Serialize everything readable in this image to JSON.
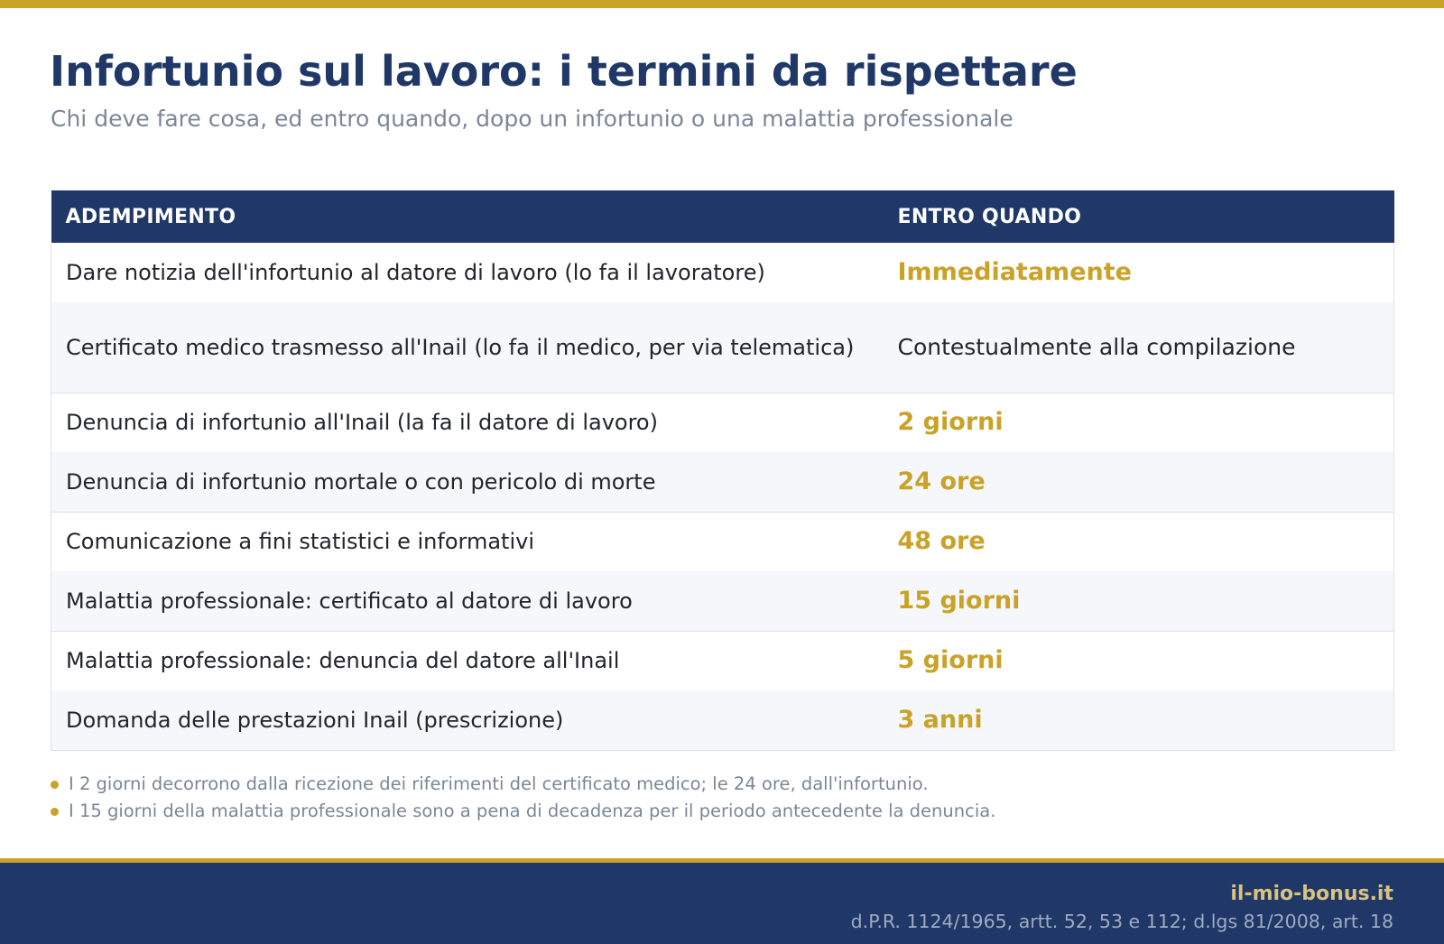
{
  "header": {
    "title": "Infortunio sul lavoro: i termini da rispettare",
    "subtitle": "Chi deve fare cosa, ed entro quando, dopo un infortunio o una malattia professionale"
  },
  "table": {
    "columns": [
      "ADEMPIMENTO",
      "ENTRO QUANDO"
    ],
    "rows": [
      {
        "task": "Dare notizia dell'infortunio al datore di lavoro (lo fa il lavoratore)",
        "deadline": "Immediatamente"
      },
      {
        "task": "Certificato medico trasmesso all'Inail (lo fa il medico, per via telematica)",
        "deadline": "Contestualmente alla compilazione"
      },
      {
        "task": "Denuncia di infortunio all'Inail (la fa il datore di lavoro)",
        "deadline": "2 giorni"
      },
      {
        "task": "Denuncia di infortunio mortale o con pericolo di morte",
        "deadline": "24 ore"
      },
      {
        "task": "Comunicazione a fini statistici e informativi",
        "deadline": "48 ore"
      },
      {
        "task": "Malattia professionale: certificato al datore di lavoro",
        "deadline": "15 giorni"
      },
      {
        "task": "Malattia professionale: denuncia del datore all'Inail",
        "deadline": "5 giorni"
      },
      {
        "task": "Domanda delle prestazioni Inail (prescrizione)",
        "deadline": "3 anni"
      }
    ]
  },
  "notes": [
    "I 2 giorni decorrono dalla ricezione dei riferimenti del certificato medico; le 24 ore, dall'infortunio.",
    "I 15 giorni della malattia professionale sono a pena di decadenza per il periodo antecedente la denuncia."
  ],
  "footer": {
    "brand": "il-mio-bonus.it",
    "legal": "d.P.R. 1124/1965, artt. 52, 53 e 112; d.lgs 81/2008, art. 18"
  },
  "colors": {
    "navy": "#1f3868",
    "gold": "#c9a227",
    "muted": "#7a8798"
  }
}
